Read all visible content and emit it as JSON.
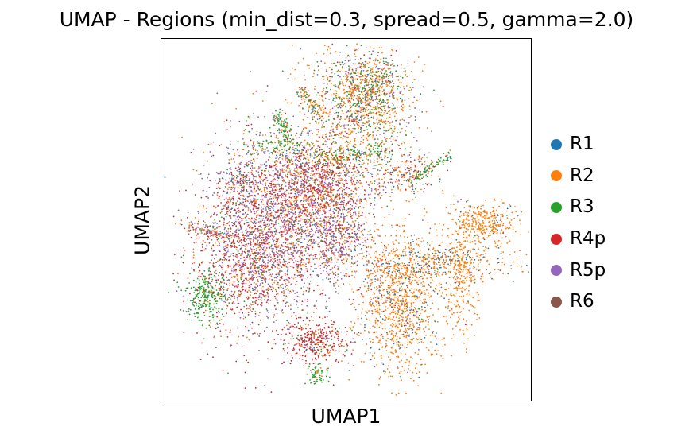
{
  "chart_data": {
    "type": "scatter",
    "title": "UMAP - Regions (min_dist=0.3, spread=0.5, gamma=2.0)",
    "xlabel": "UMAP1",
    "ylabel": "UMAP2",
    "xticks": [],
    "yticks": [],
    "grid": false,
    "legend_position": "right",
    "series": [
      {
        "name": "R1",
        "color": "#1f77b4"
      },
      {
        "name": "R2",
        "color": "#ff7f0e"
      },
      {
        "name": "R3",
        "color": "#2ca02c"
      },
      {
        "name": "R4p",
        "color": "#d62728"
      },
      {
        "name": "R5p",
        "color": "#9467bd"
      },
      {
        "name": "R6",
        "color": "#8c564b"
      }
    ]
  }
}
